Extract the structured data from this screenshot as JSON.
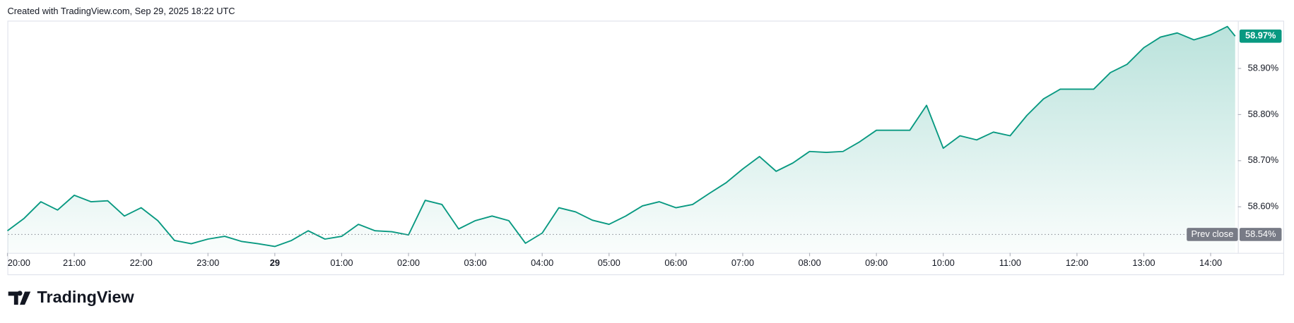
{
  "header": {
    "credit": "Created with TradingView.com, Sep 29, 2025 18:22 UTC"
  },
  "footer": {
    "brand": "TradingView"
  },
  "chart_data": {
    "type": "area",
    "color": "#089981",
    "x": [
      "28 20:00",
      "28 20:15",
      "28 20:30",
      "28 20:45",
      "28 21:00",
      "28 21:15",
      "28 21:30",
      "28 21:45",
      "28 22:00",
      "28 22:15",
      "28 22:30",
      "28 22:45",
      "28 23:00",
      "28 23:15",
      "28 23:30",
      "28 23:45",
      "29 00:00",
      "29 00:15",
      "29 00:30",
      "29 00:45",
      "29 01:00",
      "29 01:15",
      "29 01:30",
      "29 01:45",
      "29 02:00",
      "29 02:15",
      "29 02:30",
      "29 02:45",
      "29 03:00",
      "29 03:15",
      "29 03:30",
      "29 03:45",
      "29 04:00",
      "29 04:15",
      "29 04:30",
      "29 04:45",
      "29 05:00",
      "29 05:15",
      "29 05:30",
      "29 05:45",
      "29 06:00",
      "29 06:15",
      "29 06:30",
      "29 06:45",
      "29 07:00",
      "29 07:15",
      "29 07:30",
      "29 07:45",
      "29 08:00",
      "29 08:15",
      "29 08:30",
      "29 08:45",
      "29 09:00",
      "29 09:15",
      "29 09:30",
      "29 09:45",
      "29 10:00",
      "29 10:15",
      "29 10:30",
      "29 10:45",
      "29 11:00",
      "29 11:15",
      "29 11:30",
      "29 11:45",
      "29 12:00",
      "29 12:15",
      "29 12:30",
      "29 12:45",
      "29 13:00",
      "29 13:15",
      "29 13:30",
      "29 13:45",
      "29 14:00",
      "29 14:15",
      "29 14:22"
    ],
    "values": [
      58.548,
      58.575,
      58.611,
      58.593,
      58.625,
      58.611,
      58.613,
      58.58,
      58.598,
      58.57,
      58.527,
      58.52,
      58.53,
      58.536,
      58.525,
      58.52,
      58.514,
      58.527,
      58.548,
      58.53,
      58.536,
      58.562,
      58.548,
      58.546,
      58.539,
      58.614,
      58.605,
      58.552,
      58.57,
      58.58,
      58.57,
      58.521,
      58.543,
      58.598,
      58.589,
      58.571,
      58.562,
      58.58,
      58.602,
      58.611,
      58.598,
      58.605,
      58.629,
      58.652,
      58.682,
      58.709,
      58.677,
      58.695,
      58.72,
      58.718,
      58.72,
      58.741,
      58.766,
      58.766,
      58.766,
      58.82,
      58.727,
      58.754,
      58.745,
      58.762,
      58.754,
      58.798,
      58.834,
      58.855,
      58.855,
      58.855,
      58.891,
      58.909,
      58.945,
      58.968,
      58.977,
      58.962,
      58.973,
      58.991,
      58.97
    ],
    "xlim": [
      "28 20:00",
      "29 14:25"
    ],
    "xticks": [
      {
        "value": "28 20:00",
        "label": "20:00"
      },
      {
        "value": "28 21:00",
        "label": "21:00"
      },
      {
        "value": "28 22:00",
        "label": "22:00"
      },
      {
        "value": "28 23:00",
        "label": "23:00"
      },
      {
        "value": "29 00:00",
        "label": "29"
      },
      {
        "value": "29 01:00",
        "label": "01:00"
      },
      {
        "value": "29 02:00",
        "label": "02:00"
      },
      {
        "value": "29 03:00",
        "label": "03:00"
      },
      {
        "value": "29 04:00",
        "label": "04:00"
      },
      {
        "value": "29 05:00",
        "label": "05:00"
      },
      {
        "value": "29 06:00",
        "label": "06:00"
      },
      {
        "value": "29 07:00",
        "label": "07:00"
      },
      {
        "value": "29 08:00",
        "label": "08:00"
      },
      {
        "value": "29 09:00",
        "label": "09:00"
      },
      {
        "value": "29 10:00",
        "label": "10:00"
      },
      {
        "value": "29 11:00",
        "label": "11:00"
      },
      {
        "value": "29 12:00",
        "label": "12:00"
      },
      {
        "value": "29 13:00",
        "label": "13:00"
      },
      {
        "value": "29 14:00",
        "label": "14:00"
      }
    ],
    "ylim": [
      58.5,
      59.0
    ],
    "yticks": [
      {
        "value": 58.6,
        "label": "58.60%"
      },
      {
        "value": 58.7,
        "label": "58.70%"
      },
      {
        "value": 58.8,
        "label": "58.80%"
      },
      {
        "value": 58.9,
        "label": "58.90%"
      }
    ],
    "last_value": {
      "value": 58.97,
      "label": "58.97%"
    },
    "prev_close": {
      "name": "Prev close",
      "value": 58.54,
      "label": "58.54%"
    }
  }
}
